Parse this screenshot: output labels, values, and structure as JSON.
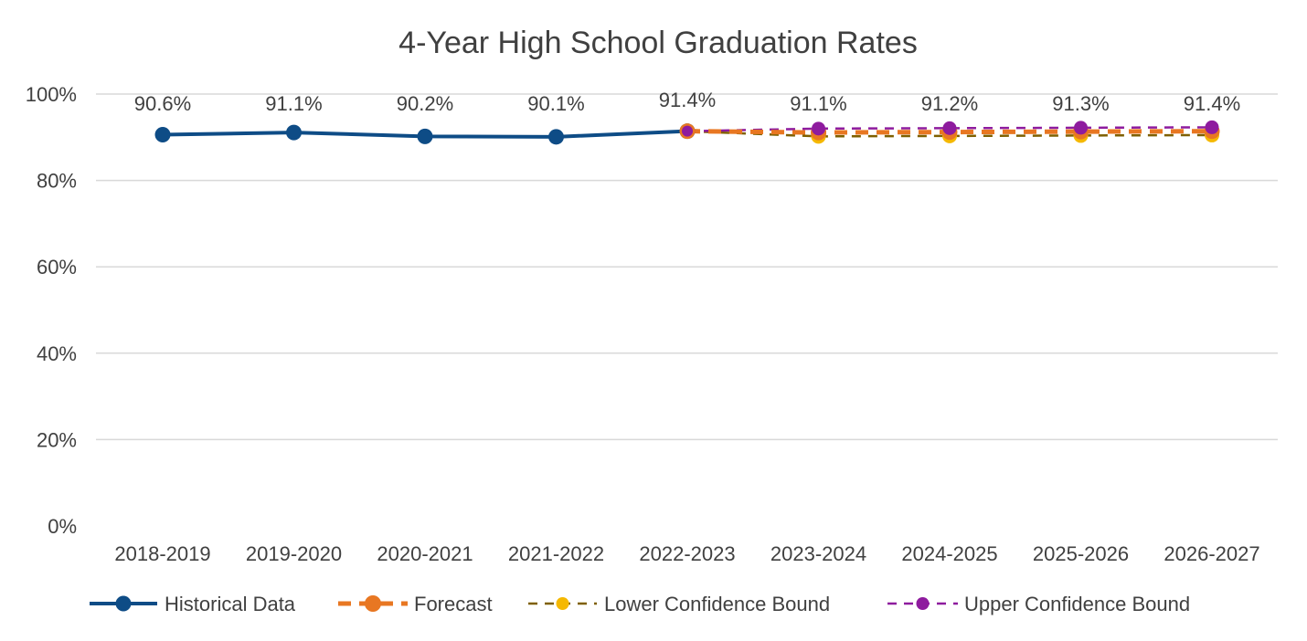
{
  "chart_data": {
    "type": "line",
    "title": "4-Year High School Graduation Rates",
    "xlabel": "",
    "ylabel": "",
    "ylim": [
      0,
      100
    ],
    "y_ticks": [
      "0%",
      "20%",
      "40%",
      "60%",
      "80%",
      "100%"
    ],
    "y_tick_values": [
      0,
      20,
      40,
      60,
      80,
      100
    ],
    "categories": [
      "2018-2019",
      "2019-2020",
      "2020-2021",
      "2021-2022",
      "2022-2023",
      "2023-2024",
      "2024-2025",
      "2025-2026",
      "2026-2027"
    ],
    "grid": true,
    "legend_position": "bottom",
    "series": [
      {
        "name": "Historical Data",
        "color": "#0e4c86",
        "style": "solid",
        "values": [
          90.6,
          91.1,
          90.2,
          90.1,
          91.4,
          null,
          null,
          null,
          null
        ],
        "labels": [
          "90.6%",
          "91.1%",
          "90.2%",
          "90.1%",
          "",
          "",
          "",
          "",
          ""
        ]
      },
      {
        "name": "Forecast",
        "color": "#e87722",
        "style": "dashed-thick",
        "values": [
          null,
          null,
          null,
          null,
          91.4,
          91.1,
          91.2,
          91.3,
          91.4
        ],
        "labels": [
          "",
          "",
          "",
          "",
          "91.4%",
          "91.1%",
          "91.2%",
          "91.3%",
          "91.4%"
        ]
      },
      {
        "name": "Lower Confidence Bound",
        "color": "#f5b800",
        "line_color": "#7f6000",
        "style": "dashed",
        "values": [
          null,
          null,
          null,
          null,
          91.4,
          90.2,
          90.3,
          90.4,
          90.5
        ]
      },
      {
        "name": "Upper Confidence Bound",
        "color": "#8e1b9e",
        "line_color": "#8e1b9e",
        "style": "dashed",
        "values": [
          null,
          null,
          null,
          null,
          91.4,
          92.0,
          92.1,
          92.2,
          92.3
        ]
      }
    ]
  }
}
